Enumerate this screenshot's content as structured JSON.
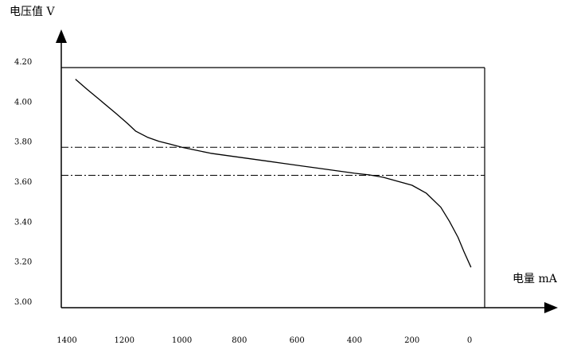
{
  "chart_data": {
    "type": "line",
    "title": "",
    "ylabel": "电压值 V",
    "xlabel": "电量 mA",
    "x_reversed": true,
    "xlim": [
      1400,
      0
    ],
    "ylim": [
      3.0,
      4.2
    ],
    "x_ticks": [
      "1400",
      "1200",
      "1000",
      "800",
      "600",
      "400",
      "200",
      "0"
    ],
    "x_tick_values": [
      1400,
      1200,
      1000,
      800,
      600,
      400,
      200,
      0
    ],
    "y_ticks": [
      "4.20",
      "4.00",
      "3.80",
      "3.60",
      "3.40",
      "3.20",
      "3.00"
    ],
    "y_tick_values": [
      4.2,
      4.0,
      3.8,
      3.6,
      3.4,
      3.2,
      3.0
    ],
    "reference_lines": [
      {
        "axis": "y",
        "value": 3.77,
        "style": "dash-dot"
      },
      {
        "axis": "y",
        "value": 3.63,
        "style": "dash-dot"
      }
    ],
    "series": [
      {
        "x": [
          1370,
          1330,
          1280,
          1230,
          1190,
          1160,
          1120,
          1080,
          1040,
          1000,
          950,
          900,
          850,
          800,
          750,
          700,
          650,
          600,
          550,
          500,
          450,
          400,
          350,
          300,
          250,
          200,
          150,
          100,
          70,
          40,
          20,
          -5
        ],
        "y": [
          4.11,
          4.06,
          4.0,
          3.94,
          3.89,
          3.85,
          3.82,
          3.8,
          3.785,
          3.77,
          3.755,
          3.74,
          3.73,
          3.72,
          3.71,
          3.7,
          3.69,
          3.68,
          3.67,
          3.66,
          3.65,
          3.64,
          3.632,
          3.62,
          3.6,
          3.58,
          3.54,
          3.47,
          3.4,
          3.32,
          3.25,
          3.17
        ]
      }
    ]
  }
}
